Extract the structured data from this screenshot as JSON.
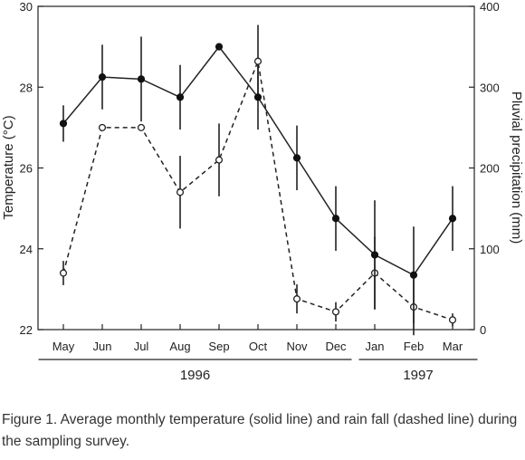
{
  "chart_data": {
    "type": "line",
    "categories": [
      "May",
      "Jun",
      "Jul",
      "Aug",
      "Sep",
      "Oct",
      "Nov",
      "Dec",
      "Jan",
      "Feb",
      "Mar"
    ],
    "years": [
      {
        "label": "1996",
        "from": "May",
        "to": "Dec"
      },
      {
        "label": "1997",
        "from": "Jan",
        "to": "Mar"
      }
    ],
    "y_left": {
      "label": "Temperature (°C)",
      "ylim": [
        22,
        30
      ],
      "ticks": [
        22,
        24,
        26,
        28,
        30
      ]
    },
    "y_right": {
      "label": "Pluvial precipitation (mm)",
      "ylim": [
        0,
        400
      ],
      "ticks": [
        0,
        100,
        200,
        300,
        400
      ]
    },
    "series": [
      {
        "axis": "left",
        "style": "solid",
        "marker": "filled-circle",
        "values": [
          27.1,
          28.25,
          28.2,
          27.75,
          29.0,
          27.75,
          26.25,
          24.75,
          23.85,
          23.35,
          24.75
        ],
        "error": [
          0.45,
          0.8,
          1.05,
          0.8,
          0,
          0.8,
          0.8,
          0.8,
          1.35,
          1.2,
          0.8
        ]
      },
      {
        "axis": "right",
        "style": "dashed",
        "marker": "open-circle",
        "values": [
          70,
          250,
          250,
          170,
          210,
          332,
          38,
          22,
          70,
          28,
          12
        ],
        "error": [
          15,
          0,
          0,
          45,
          45,
          45,
          18,
          12,
          45,
          35,
          8
        ]
      }
    ],
    "grid": false,
    "legend": "none"
  },
  "caption": "Figure 1. Average monthly temperature (solid line) and rain fall (dashed line) during the sampling survey."
}
